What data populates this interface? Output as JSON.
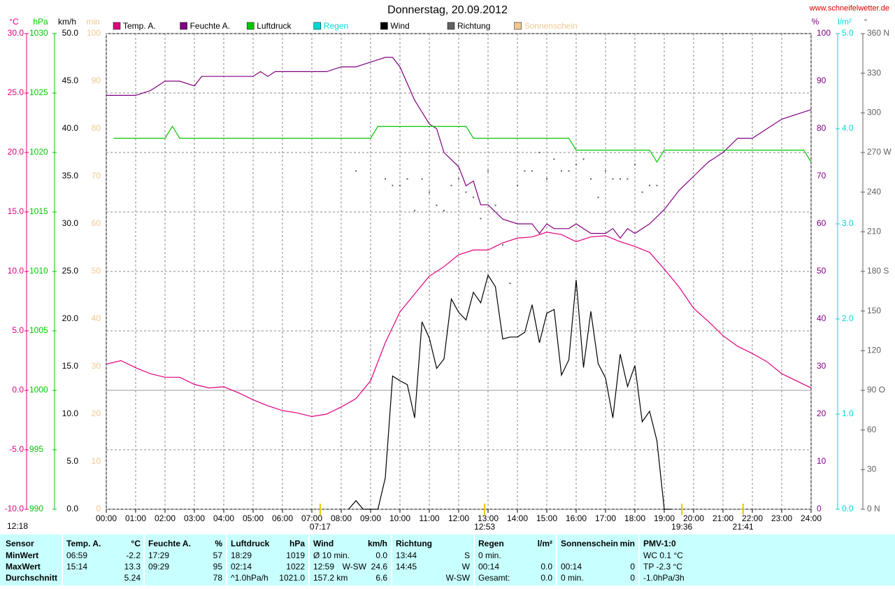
{
  "chart_data": {
    "type": "line",
    "title": "Donnerstag, 20.09.2012",
    "source": "www.schneifelwetter.de",
    "grid": true,
    "xlim": [
      0,
      24
    ],
    "xticks": [
      {
        "value": 0,
        "label": "00:00"
      },
      {
        "value": 1,
        "label": "01:00"
      },
      {
        "value": 2,
        "label": "02:00"
      },
      {
        "value": 3,
        "label": "03:00"
      },
      {
        "value": 4,
        "label": "04:00"
      },
      {
        "value": 5,
        "label": "05:00"
      },
      {
        "value": 6,
        "label": "06:00"
      },
      {
        "value": 7,
        "label": "07:00"
      },
      {
        "value": 8,
        "label": "08:00"
      },
      {
        "value": 9,
        "label": "09:00"
      },
      {
        "value": 10,
        "label": "10:00"
      },
      {
        "value": 11,
        "label": "11:00"
      },
      {
        "value": 12,
        "label": "12:00"
      },
      {
        "value": 13,
        "label": "13:00"
      },
      {
        "value": 14,
        "label": "14:00"
      },
      {
        "value": 15,
        "label": "15:00"
      },
      {
        "value": 16,
        "label": "16:00"
      },
      {
        "value": 17,
        "label": "17:00"
      },
      {
        "value": 18,
        "label": "18:00"
      },
      {
        "value": 19,
        "label": "19:00"
      },
      {
        "value": 20,
        "label": "20:00"
      },
      {
        "value": 21,
        "label": "21:00"
      },
      {
        "value": 22,
        "label": "22:00"
      },
      {
        "value": 23,
        "label": "23:00"
      },
      {
        "value": 24,
        "label": "24:00"
      }
    ],
    "annotations": [
      {
        "label": "12:18"
      },
      {
        "x": 7.2833,
        "label": "07:17"
      },
      {
        "x": 12.8833,
        "label": "12:53"
      },
      {
        "x": 19.6,
        "label": "19:36"
      },
      {
        "x": 21.6833,
        "label": "21:41"
      }
    ],
    "series": [
      {
        "name": "Temp. A.",
        "unit": "°C",
        "color": "#e0007f",
        "ylim": [
          -10,
          30
        ],
        "yticks": [
          {
            "value": -10,
            "label": "-10.0"
          },
          {
            "value": -5,
            "label": "-5.0"
          },
          {
            "value": 0,
            "label": "0.0"
          },
          {
            "value": 5,
            "label": "5.0"
          },
          {
            "value": 10,
            "label": "10.0"
          },
          {
            "value": 15,
            "label": "15.0"
          },
          {
            "value": 20,
            "label": "20.0"
          },
          {
            "value": 25,
            "label": "25.0"
          },
          {
            "value": 30,
            "label": "30.0"
          }
        ],
        "x": [
          0,
          0.5,
          1,
          1.5,
          2,
          2.5,
          3,
          3.5,
          4,
          4.5,
          5,
          5.5,
          6,
          6.5,
          7,
          7.5,
          8,
          8.5,
          9,
          9.5,
          10,
          10.5,
          11,
          11.5,
          12,
          12.5,
          13,
          13.5,
          14,
          14.5,
          15,
          15.5,
          16,
          16.5,
          17,
          17.5,
          18,
          18.5,
          19,
          19.5,
          20,
          20.5,
          21,
          21.5,
          22,
          22.5,
          23,
          23.5,
          24
        ],
        "values": [
          2.2,
          2.5,
          1.9,
          1.4,
          1.1,
          1.1,
          0.5,
          0.2,
          0.3,
          -0.2,
          -0.8,
          -1.3,
          -1.7,
          -1.9,
          -2.2,
          -2.0,
          -1.4,
          -0.7,
          0.8,
          4.0,
          6.6,
          8.1,
          9.6,
          10.4,
          11.4,
          11.8,
          11.8,
          12.4,
          12.8,
          12.9,
          13.3,
          13.1,
          12.5,
          12.9,
          13.0,
          12.5,
          12.1,
          11.6,
          10.2,
          8.7,
          6.9,
          5.8,
          4.6,
          3.7,
          3.1,
          2.4,
          1.4,
          0.8,
          0.2
        ]
      },
      {
        "name": "Feuchte A.",
        "unit": "%",
        "color": "#800080",
        "ylim": [
          0,
          100
        ],
        "yticks": [
          0,
          10,
          20,
          30,
          40,
          50,
          60,
          70,
          80,
          90,
          100
        ],
        "x": [
          0,
          1,
          1.5,
          2,
          2.5,
          3,
          3.25,
          4,
          5,
          5.25,
          5.5,
          5.75,
          7,
          7.5,
          8,
          8.5,
          9,
          9.5,
          9.75,
          10,
          10.5,
          11,
          11.25,
          11.5,
          12,
          12.25,
          12.5,
          12.75,
          13,
          13.5,
          14,
          14.5,
          14.75,
          15,
          15.25,
          15.75,
          16,
          16.5,
          17,
          17.25,
          17.5,
          17.75,
          18,
          18.5,
          19,
          19.5,
          20,
          20.5,
          21,
          21.5,
          22,
          22.5,
          23,
          23.5,
          24
        ],
        "values": [
          87,
          87,
          88,
          90,
          90,
          89,
          91,
          91,
          91,
          92,
          91,
          92,
          92,
          92,
          93,
          93,
          94,
          95,
          95,
          93,
          86,
          81,
          80,
          75,
          72,
          68,
          69,
          64,
          64,
          61,
          60,
          60,
          58,
          60,
          59,
          59,
          60,
          58,
          58,
          59,
          57,
          59,
          58,
          60,
          63,
          67,
          70,
          73,
          75,
          78,
          78,
          80,
          82,
          83,
          84
        ]
      },
      {
        "name": "Luftdruck",
        "unit": "hPa",
        "color": "#00c800",
        "ylim": [
          990,
          1030
        ],
        "yticks": [
          990,
          995,
          1000,
          1005,
          1010,
          1015,
          1020,
          1025,
          1030
        ],
        "x": [
          0.25,
          2,
          2.25,
          2.5,
          9,
          9.25,
          12.25,
          12.5,
          15.75,
          16,
          18.5,
          18.75,
          19,
          23.75,
          24
        ],
        "values": [
          1021.2,
          1021.2,
          1022.2,
          1021.2,
          1021.2,
          1022.2,
          1022.2,
          1021.2,
          1021.2,
          1020.2,
          1020.2,
          1019.2,
          1020.2,
          1020.2,
          1019.2
        ]
      },
      {
        "name": "Regen",
        "unit": "l/m²",
        "color": "#00d8d8",
        "ylim": [
          0,
          5
        ],
        "yticks": [
          {
            "value": 0,
            "label": "0.0"
          },
          {
            "value": 1,
            "label": "1.0"
          },
          {
            "value": 2,
            "label": "2.0"
          },
          {
            "value": 3,
            "label": "3.0"
          },
          {
            "value": 4,
            "label": "4.0"
          },
          {
            "value": 5,
            "label": "5.0"
          }
        ]
      },
      {
        "name": "Wind",
        "unit": "km/h",
        "color": "#000000",
        "ylim": [
          0,
          50
        ],
        "yticks": [
          {
            "value": 0,
            "label": "0.0"
          },
          {
            "value": 5,
            "label": "5.0"
          },
          {
            "value": 10,
            "label": "10.0"
          },
          {
            "value": 15,
            "label": "15.0"
          },
          {
            "value": 20,
            "label": "20.0"
          },
          {
            "value": 25,
            "label": "25.0"
          },
          {
            "value": 30,
            "label": "30.0"
          },
          {
            "value": 35,
            "label": "35.0"
          },
          {
            "value": 40,
            "label": "40.0"
          },
          {
            "value": 45,
            "label": "45.0"
          },
          {
            "value": 50,
            "label": "50.0"
          }
        ],
        "x": [
          8.25,
          8.5,
          8.75,
          9,
          9.25,
          9.5,
          9.75,
          10,
          10.25,
          10.5,
          10.75,
          11,
          11.25,
          11.5,
          11.75,
          12,
          12.25,
          12.5,
          12.75,
          13,
          13.25,
          13.5,
          13.75,
          14,
          14.25,
          14.5,
          14.75,
          15,
          15.25,
          15.5,
          15.75,
          16,
          16.25,
          16.5,
          16.75,
          17,
          17.25,
          17.5,
          17.75,
          18,
          18.25,
          18.5,
          18.75,
          19,
          19.25
        ],
        "values": [
          0,
          0.9,
          0,
          0,
          0,
          3.3,
          14.0,
          13.5,
          13.1,
          9.6,
          19.7,
          18.0,
          14.8,
          15.8,
          22.1,
          20.7,
          19.9,
          22.8,
          21.7,
          24.6,
          23.4,
          17.9,
          18.1,
          18.1,
          18.6,
          21.5,
          17.5,
          20.6,
          21.0,
          14.1,
          15.7,
          24.1,
          14.9,
          20.8,
          15.3,
          13.8,
          9.6,
          16.3,
          12.9,
          15.1,
          9.2,
          10.3,
          7.2,
          0,
          0
        ]
      },
      {
        "name": "Richtung",
        "unit": "°",
        "color": "#606060",
        "type": "scatter",
        "ylim": [
          0,
          360
        ],
        "yticks": [
          {
            "value": 0,
            "label": "0 N"
          },
          30,
          60,
          {
            "value": 90,
            "label": "90 O"
          },
          120,
          150,
          {
            "value": 180,
            "label": "180 S"
          },
          210,
          240,
          {
            "value": 270,
            "label": "270 W"
          },
          300,
          330,
          {
            "value": 360,
            "label": "360 N"
          }
        ],
        "x": [
          8.5,
          9.5,
          9.75,
          10,
          10.25,
          10.5,
          10.75,
          11,
          11.25,
          11.5,
          11.75,
          12,
          12.25,
          12.5,
          12.75,
          13,
          13.25,
          13.5,
          13.75,
          14,
          14.25,
          14.5,
          14.75,
          15,
          15.25,
          15.5,
          15.75,
          16,
          16.25,
          16.5,
          16.75,
          17,
          17.25,
          17.5,
          17.75,
          18,
          18.25,
          18.5,
          18.75
        ],
        "values": [
          256,
          250,
          245,
          245,
          250,
          226,
          250,
          240,
          230,
          226,
          245,
          250,
          240,
          236,
          220,
          256,
          230,
          200,
          171,
          245,
          256,
          256,
          270,
          250,
          265,
          256,
          256,
          261,
          265,
          250,
          236,
          256,
          250,
          250,
          250,
          261,
          240,
          245,
          245
        ]
      },
      {
        "name": "Sonnenschein",
        "unit": "min",
        "color": "#f0c890",
        "ylim": [
          0,
          100
        ],
        "yticks": [
          0,
          10,
          20,
          30,
          40,
          50,
          60,
          70,
          80,
          90,
          100
        ]
      }
    ]
  },
  "table": {
    "header": [
      [
        "Sensor"
      ],
      [
        "Temp. A.",
        "°C"
      ],
      [
        "Feuchte A.",
        "%"
      ],
      [
        "Luftdruck",
        "hPa"
      ],
      [
        "Wind",
        "km/h"
      ],
      [
        "Richtung"
      ],
      [
        "Regen",
        "l/m²"
      ],
      [
        "Sonnenschein",
        "min"
      ],
      [
        "PMV-1:0"
      ]
    ],
    "rows": [
      [
        [
          "MinWert"
        ],
        [
          "06:59",
          "-2.2"
        ],
        [
          "17:29",
          "57"
        ],
        [
          "18:29",
          "1019"
        ],
        [
          "Ø 10 min.",
          "0.0"
        ],
        [
          "13:44",
          "S"
        ],
        [
          "0 min."
        ],
        null,
        [
          "WC 0.1 °C"
        ]
      ],
      [
        [
          "MaxWert"
        ],
        [
          "15:14",
          "13.3"
        ],
        [
          "09:29",
          "95"
        ],
        [
          "02:14",
          "1022"
        ],
        [
          "12:59",
          "W-SW",
          "24.6"
        ],
        [
          "14:45",
          "W"
        ],
        [
          "00:14",
          "0.0"
        ],
        [
          "00:14",
          "0"
        ],
        [
          "TP -2.3 °C"
        ]
      ],
      [
        [
          "Durchschnitt"
        ],
        [
          null,
          "5.24"
        ],
        [
          null,
          "78"
        ],
        [
          "^1.0hPa/h",
          "1021.0"
        ],
        [
          "157.2 km",
          "6.6"
        ],
        [
          null,
          "W-SW"
        ],
        [
          "Gesamt:",
          "0.0"
        ],
        [
          "0 min.",
          "0"
        ],
        [
          "-1.0hPa/3h"
        ]
      ]
    ]
  }
}
